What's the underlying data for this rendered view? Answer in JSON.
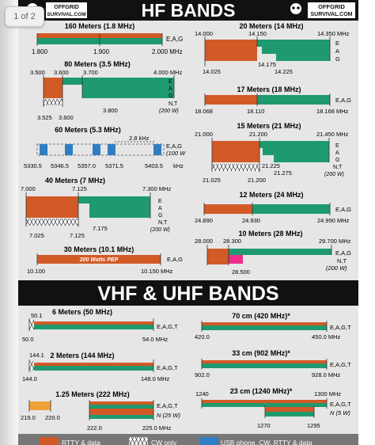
{
  "page_indicator": "1 of 2",
  "colors": {
    "rtty": "#d15a27",
    "phone": "#1f9a6e",
    "usb": "#2f7ec4",
    "pep": "#e0335e",
    "novice": "#ee2e8a",
    "amber": "#f0a23a",
    "band_bg": "#e9e9e9",
    "header_bg": "#111111"
  },
  "icons": [
    "skull-logo-icon",
    "skull-logo-icon"
  ],
  "logo_text": [
    "OFFGRID",
    "SURVIVAL.COM"
  ],
  "hf_title": "HF BANDS",
  "vhf_title": "VHF & UHF BANDS",
  "classes": [
    "E,A,G",
    "E",
    "A",
    "G",
    "N,T",
    "(200 W)",
    "E,A,G,T",
    "N (25 W)",
    "N (5 W)"
  ],
  "chart_data": {
    "type": "table",
    "hf": [
      {
        "title": "160 Meters (1.8 MHz)",
        "labels": [
          "1.800",
          "1.900",
          "2.000 MHz"
        ],
        "classes": [
          "E,A,G"
        ]
      },
      {
        "title": "80 Meters (3.5 MHz)",
        "labels": [
          "3.500",
          "3.600",
          "3.700",
          "4.000 MHz",
          "3.800",
          "3.525",
          "3.600"
        ],
        "classes": [
          "E",
          "A",
          "G",
          "N,T",
          "(200 W)"
        ]
      },
      {
        "title": "60 Meters (5.3 MHz)",
        "labels": [
          "2.8 kHz",
          "5330.5",
          "5346.5",
          "5357.0",
          "5371.5",
          "5403.5",
          "kHz"
        ],
        "classes": [
          "E,A,G",
          "(100 W"
        ]
      },
      {
        "title": "40 Meters (7 MHz)",
        "labels": [
          "7.000",
          "7.125",
          "7.300 MHz",
          "7.175",
          "7.025",
          "7.125"
        ],
        "classes": [
          "E",
          "A",
          "G",
          "N,T",
          "(200 W)"
        ]
      },
      {
        "title": "30 Meters (10.1 MHz)",
        "labels": [
          "10.100",
          "10.150 MHz"
        ],
        "note": "200 Watts PEP",
        "classes": [
          "E,A,G"
        ]
      },
      {
        "title": "20 Meters (14 MHz)",
        "labels": [
          "14.000",
          "14.150",
          "14.350 MHz",
          "14.175",
          "14.025",
          "14.225"
        ],
        "classes": [
          "E",
          "A",
          "G"
        ]
      },
      {
        "title": "17 Meters (18 MHz)",
        "labels": [
          "18.068",
          "18.110",
          "18.168 MHz"
        ],
        "classes": [
          "E,A,G"
        ]
      },
      {
        "title": "15 Meters (21 MHz)",
        "labels": [
          "21.000",
          "21.200",
          "21.450 MHz",
          "21.225",
          "21.275",
          "21.025",
          "21.200"
        ],
        "classes": [
          "E",
          "A",
          "G",
          "N,T",
          "(200 W)"
        ]
      },
      {
        "title": "12 Meters (24 MHz)",
        "labels": [
          "24.890",
          "24.930",
          "24.990 MHz"
        ],
        "classes": [
          "E,A,G"
        ]
      },
      {
        "title": "10 Meters (28 MHz)",
        "labels": [
          "28.000",
          "28.300",
          "29.700 MHz",
          "28.500"
        ],
        "classes": [
          "E,A,G",
          "N,T",
          "(200 W)"
        ]
      }
    ],
    "vhf": [
      {
        "title": "6 Meters (50 MHz)",
        "labels": [
          "50.1",
          "50.0",
          "54.0 MHz"
        ],
        "classes": [
          "E,A,G,T"
        ]
      },
      {
        "title": "2 Meters (144 MHz)",
        "labels": [
          "144.1",
          "144.0",
          "148.0 MHz"
        ],
        "classes": [
          "E,A,G,T"
        ]
      },
      {
        "title": "1.25 Meters (222 MHz)",
        "labels": [
          "219.0",
          "220.0",
          "222.0",
          "225.0 MHz"
        ],
        "classes": [
          "E,A,G,T",
          "N (25 W)"
        ]
      },
      {
        "title": "70 cm (420 MHz)*",
        "labels": [
          "420.0",
          "450.0 MHz"
        ],
        "classes": [
          "E,A,G,T"
        ]
      },
      {
        "title": "33 cm (902 MHz)*",
        "labels": [
          "902.0",
          "928.0 MHz"
        ],
        "classes": [
          "E,A,G,T"
        ]
      },
      {
        "title": "23 cm (1240 MHz)*",
        "labels": [
          "1240",
          "1300 MHz",
          "1270",
          "1295"
        ],
        "classes": [
          "E,A,G,T",
          "N (5 W)"
        ]
      }
    ]
  },
  "legend": [
    {
      "label": "RTTY & data",
      "swatch": "rtty-swatch-icon"
    },
    {
      "label": "CW only",
      "swatch": "cw-swatch-icon"
    },
    {
      "label": "USB phone, CW, RTTY & data",
      "swatch": "usb-swatch-icon"
    }
  ]
}
